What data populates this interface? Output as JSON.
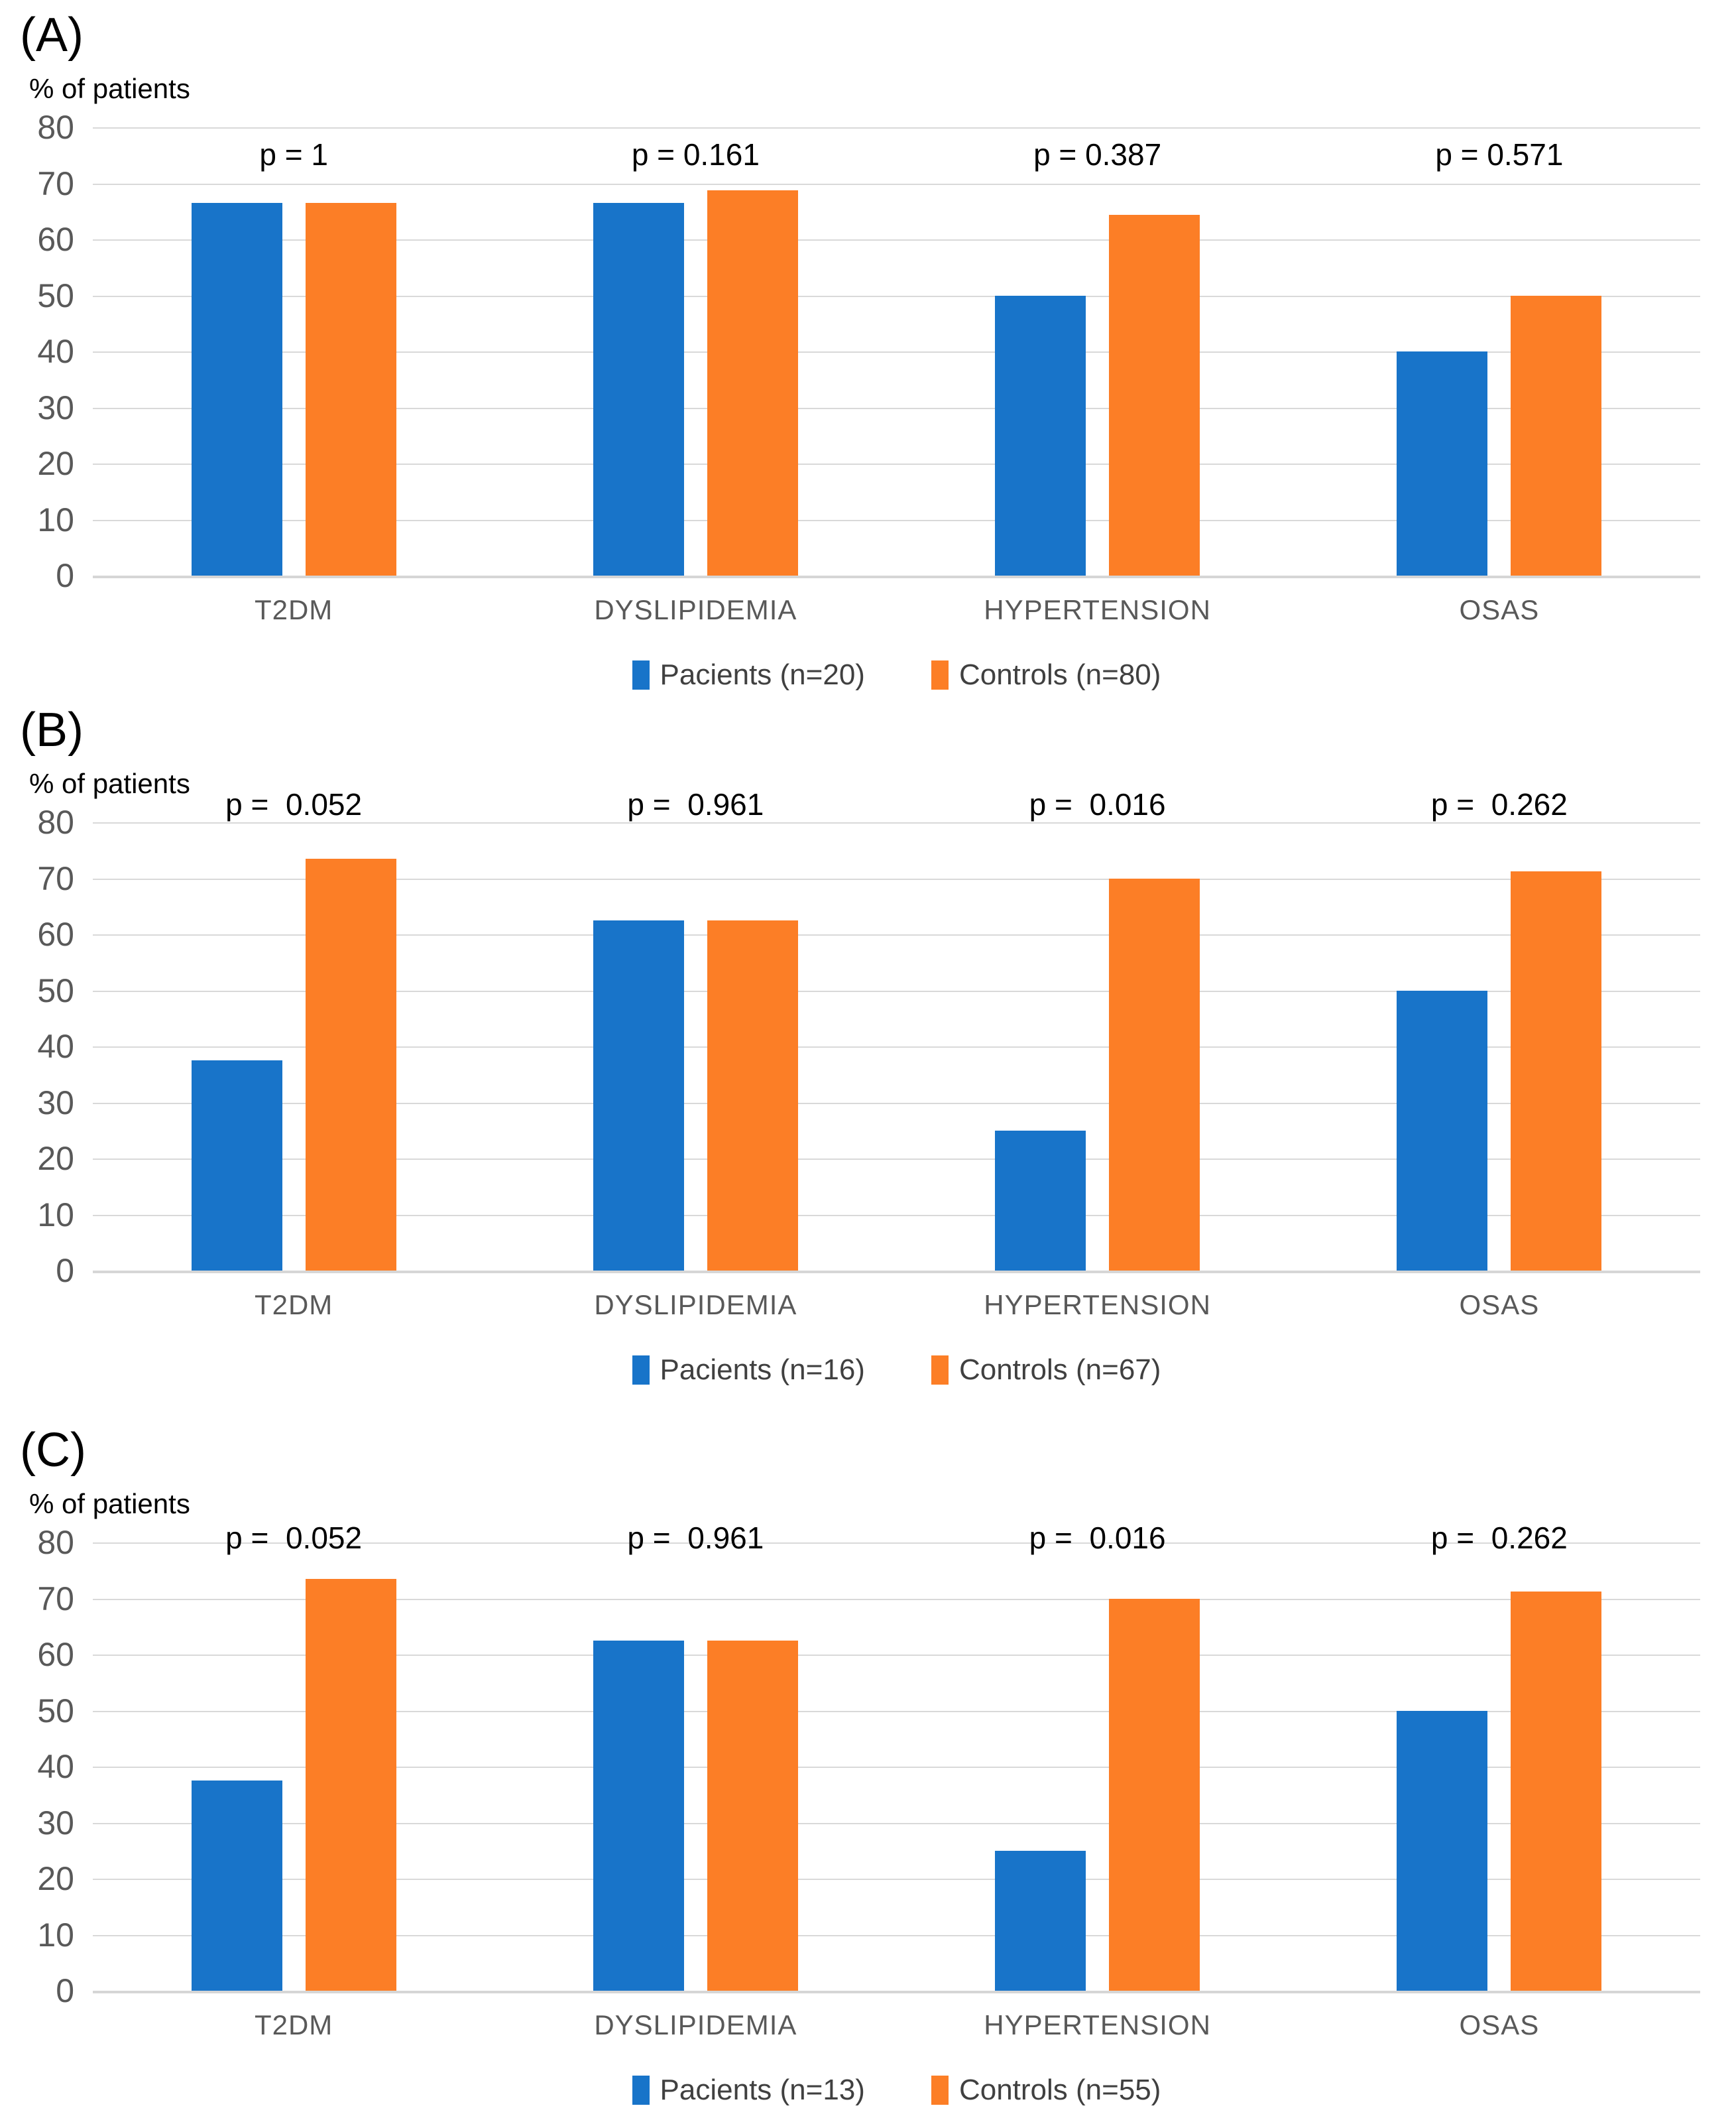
{
  "figure": {
    "background": "#ffffff",
    "colors": {
      "patients_blue": "#1874C9",
      "controls_orange": "#FC7E26",
      "gridline": "#D9D9D9",
      "tick_text": "#595959",
      "category_text": "#595959",
      "legend_text": "#404040",
      "p_value_text": "#000000",
      "panel_letter_text": "#000000"
    }
  },
  "chart_data": [
    {
      "type": "bar",
      "panel_label": "(A)",
      "ylabel": "% of patients",
      "ylim": [
        0,
        80
      ],
      "y_ticks": [
        80,
        70,
        60,
        50,
        40,
        30,
        20,
        10,
        0
      ],
      "grid": true,
      "legend_position": "bottom",
      "categories": [
        "T2DM",
        "DYSLIPIDEMIA",
        "HYPERTENSION",
        "OSAS"
      ],
      "p_value_labels": [
        "p = 1",
        "p = 0.161",
        "p = 0.387",
        "p = 0.571"
      ],
      "series": [
        {
          "name": "Pacients (n=20)",
          "color": "#1874C9",
          "values": [
            66.5,
            66.5,
            50,
            40
          ]
        },
        {
          "name": "Controls (n=80)",
          "color": "#FC7E26",
          "values": [
            66.5,
            68.8,
            64.4,
            50
          ]
        }
      ]
    },
    {
      "type": "bar",
      "panel_label": "(B)",
      "ylabel": "% of patients",
      "ylim": [
        0,
        80
      ],
      "y_ticks": [
        80,
        70,
        60,
        50,
        40,
        30,
        20,
        10,
        0
      ],
      "grid": true,
      "legend_position": "bottom",
      "categories": [
        "T2DM",
        "DYSLIPIDEMIA",
        "HYPERTENSION",
        "OSAS"
      ],
      "p_value_labels": [
        "p =  0.052",
        "p =  0.961",
        "p =  0.016",
        "p =  0.262"
      ],
      "series": [
        {
          "name": "Pacients (n=16)",
          "color": "#1874C9",
          "values": [
            37.5,
            62.5,
            25,
            50
          ]
        },
        {
          "name": "Controls (n=67)",
          "color": "#FC7E26",
          "values": [
            73.5,
            62.5,
            70,
            71.3
          ]
        }
      ]
    },
    {
      "type": "bar",
      "panel_label": "(C)",
      "ylabel": "% of patients",
      "ylim": [
        0,
        80
      ],
      "y_ticks": [
        80,
        70,
        60,
        50,
        40,
        30,
        20,
        10,
        0
      ],
      "grid": true,
      "legend_position": "bottom",
      "categories": [
        "T2DM",
        "DYSLIPIDEMIA",
        "HYPERTENSION",
        "OSAS"
      ],
      "p_value_labels": [
        "p =  0.052",
        "p =  0.961",
        "p =  0.016",
        "p =  0.262"
      ],
      "series": [
        {
          "name": "Pacients (n=13)",
          "color": "#1874C9",
          "values": [
            37.5,
            62.5,
            25,
            50
          ]
        },
        {
          "name": "Controls (n=55)",
          "color": "#FC7E26",
          "values": [
            73.5,
            62.5,
            70,
            71.3
          ]
        }
      ]
    }
  ]
}
